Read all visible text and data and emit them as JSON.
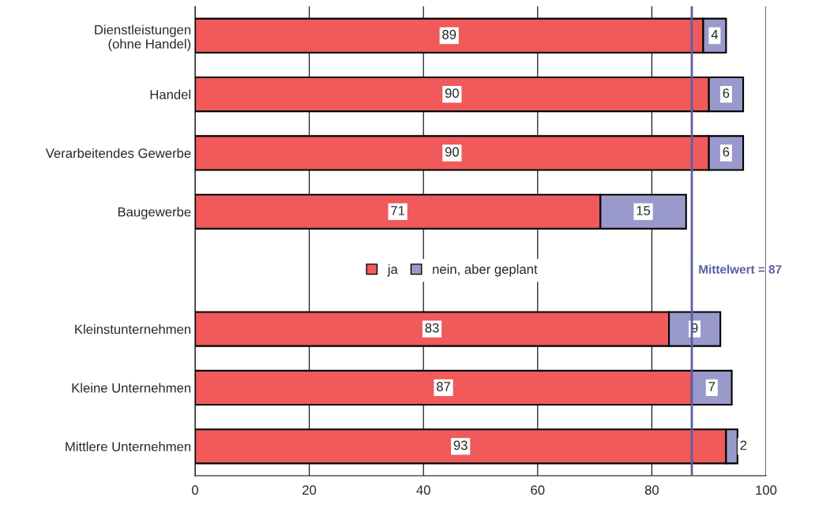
{
  "chart_data": {
    "type": "bar",
    "orientation": "horizontal",
    "stacked": true,
    "categories": [
      "Dienstleistungen\n(ohne Handel)",
      "Handel",
      "Verarbeitendes Gewerbe",
      "Baugewerbe",
      null,
      "Kleinstunternehmen",
      "Kleine Unternehmen",
      "Mittlere Unternehmen"
    ],
    "series": [
      {
        "name": "ja",
        "color": "#f05a5a",
        "values": [
          89,
          90,
          90,
          71,
          null,
          83,
          87,
          93
        ]
      },
      {
        "name": "nein, aber geplant",
        "color": "#9999cc",
        "values": [
          4,
          6,
          6,
          15,
          null,
          9,
          7,
          2
        ]
      }
    ],
    "xlim": [
      0,
      100
    ],
    "xticks": [
      0,
      20,
      40,
      60,
      80,
      100
    ],
    "grid": "x",
    "legend": "center",
    "data_labels": true,
    "ref_lines": [
      {
        "axis": "x",
        "value": 87,
        "label": "Mittelwert = 87",
        "color": "#5b5ea6"
      }
    ]
  }
}
